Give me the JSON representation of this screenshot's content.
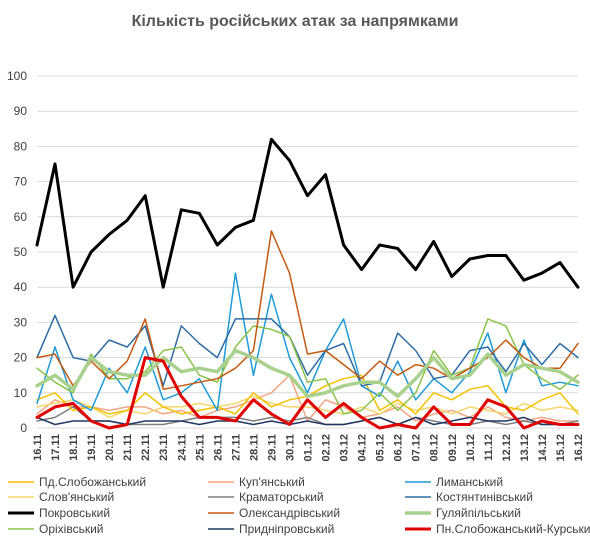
{
  "chart_data": {
    "type": "line",
    "title": "Кількість російських атак за напрямками",
    "ylim": [
      0,
      100
    ],
    "yticks": [
      0,
      10,
      20,
      30,
      40,
      50,
      60,
      70,
      80,
      90,
      100
    ],
    "grid": true,
    "legend_position": "bottom",
    "categories": [
      "16.11",
      "17.11",
      "18.11",
      "19.11",
      "20.11",
      "21.11",
      "22.11",
      "23.11",
      "24.11",
      "25.11",
      "26.11",
      "27.11",
      "28.11",
      "29.11",
      "30.11",
      "01.12",
      "02.12",
      "03.12",
      "04.12",
      "05.12",
      "06.12",
      "07.12",
      "08.12",
      "09.12",
      "10.12",
      "11.12",
      "12.12",
      "13.12",
      "14.12",
      "15.12",
      "16.12"
    ],
    "series": [
      {
        "name": "Пд.Слобожанський",
        "color": "#f2c200",
        "width": 1.5,
        "values": [
          8,
          10,
          5,
          6,
          4,
          5,
          10,
          6,
          4,
          5,
          6,
          4,
          10,
          6,
          8,
          9,
          12,
          14,
          15,
          5,
          8,
          4,
          10,
          8,
          11,
          12,
          6,
          5,
          8,
          10,
          4
        ]
      },
      {
        "name": "Куп'янський",
        "color": "#f4a582",
        "width": 1.5,
        "values": [
          4,
          8,
          6,
          6,
          5,
          6,
          6,
          4,
          5,
          3,
          5,
          6,
          8,
          10,
          15,
          2,
          8,
          6,
          3,
          4,
          6,
          2,
          4,
          5,
          3,
          6,
          3,
          2,
          3,
          2,
          2
        ]
      },
      {
        "name": "Лиманський",
        "color": "#1f9bd7",
        "width": 1.5,
        "values": [
          7,
          23,
          8,
          5,
          17,
          10,
          23,
          8,
          10,
          14,
          5,
          44,
          15,
          38,
          20,
          10,
          22,
          31,
          12,
          9,
          19,
          8,
          14,
          10,
          16,
          27,
          10,
          25,
          12,
          13,
          12
        ]
      },
      {
        "name": "Слов'янський",
        "color": "#f5d76e",
        "width": 1.5,
        "values": [
          6,
          7,
          8,
          6,
          3,
          5,
          4,
          6,
          6,
          7,
          6,
          7,
          9,
          7,
          6,
          6,
          5,
          4,
          6,
          4,
          7,
          5,
          6,
          4,
          6,
          5,
          4,
          7,
          5,
          6,
          5
        ]
      },
      {
        "name": "Краматорський",
        "color": "#7f7f7f",
        "width": 1.5,
        "values": [
          2,
          3,
          6,
          2,
          2,
          1,
          1,
          1,
          2,
          3,
          3,
          3,
          2,
          3,
          2,
          3,
          1,
          1,
          2,
          3,
          1,
          3,
          2,
          1,
          1,
          2,
          1,
          2,
          1,
          1,
          2
        ]
      },
      {
        "name": "Костянтинівський",
        "color": "#2e6da4",
        "width": 1.5,
        "values": [
          20,
          32,
          20,
          19,
          25,
          23,
          29,
          12,
          29,
          24,
          20,
          31,
          31,
          31,
          26,
          15,
          22,
          24,
          12,
          13,
          27,
          22,
          14,
          15,
          22,
          23,
          16,
          24,
          18,
          24,
          20
        ]
      },
      {
        "name": "Покровський",
        "color": "#000000",
        "width": 3,
        "values": [
          52,
          75,
          40,
          50,
          55,
          59,
          66,
          40,
          62,
          61,
          52,
          57,
          59,
          82,
          76,
          66,
          72,
          52,
          45,
          52,
          51,
          45,
          53,
          43,
          48,
          49,
          49,
          42,
          44,
          47,
          40
        ]
      },
      {
        "name": "Олександрівський",
        "color": "#c55a11",
        "width": 1.5,
        "values": [
          20,
          21,
          12,
          19,
          14,
          19,
          31,
          11,
          12,
          13,
          14,
          17,
          22,
          56,
          44,
          21,
          22,
          18,
          14,
          19,
          15,
          18,
          17,
          14,
          17,
          20,
          25,
          20,
          17,
          17,
          24
        ]
      },
      {
        "name": "Гуляйпільський",
        "color": "#a9d18e",
        "width": 3.5,
        "values": [
          12,
          15,
          11,
          20,
          16,
          15,
          15,
          20,
          16,
          17,
          16,
          22,
          20,
          17,
          15,
          9,
          10,
          12,
          13,
          13,
          9,
          14,
          20,
          14,
          15,
          21,
          15,
          18,
          17,
          16,
          13
        ]
      },
      {
        "name": "Оріхівський",
        "color": "#8bc34a",
        "width": 1.5,
        "values": [
          17,
          13,
          10,
          21,
          14,
          14,
          16,
          22,
          23,
          15,
          13,
          23,
          29,
          28,
          26,
          13,
          14,
          4,
          5,
          10,
          5,
          10,
          22,
          15,
          17,
          31,
          29,
          18,
          14,
          11,
          15
        ]
      },
      {
        "name": "Придніпровський",
        "color": "#1f3864",
        "width": 1.5,
        "values": [
          3,
          1,
          2,
          2,
          2,
          1,
          2,
          2,
          2,
          1,
          2,
          2,
          1,
          2,
          1,
          2,
          1,
          1,
          2,
          3,
          1,
          3,
          1,
          2,
          3,
          2,
          2,
          3,
          1,
          1,
          1
        ]
      },
      {
        "name": "Пн.Слобожанський-Курський",
        "color": "#e00000",
        "width": 3,
        "values": [
          3,
          6,
          7,
          2,
          0,
          1,
          20,
          19,
          9,
          3,
          3,
          2,
          8,
          4,
          1,
          8,
          3,
          7,
          3,
          0,
          1,
          0,
          6,
          1,
          1,
          8,
          6,
          0,
          2,
          1,
          1
        ]
      }
    ]
  }
}
